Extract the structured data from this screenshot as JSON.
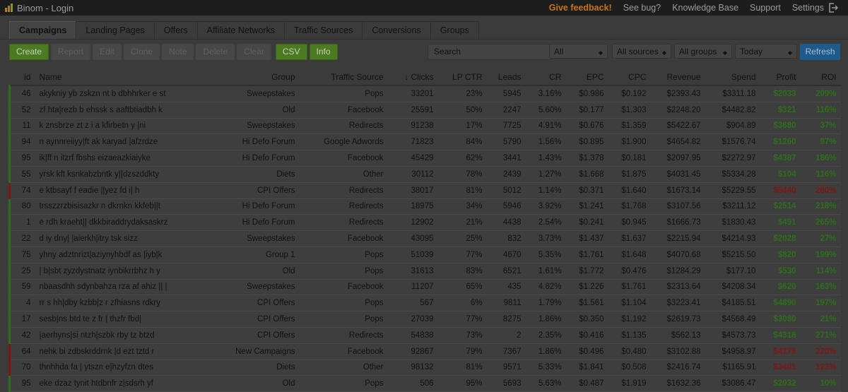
{
  "header": {
    "title": "Binom - Login",
    "links": [
      {
        "label": "Give feedback!",
        "color": "#c8741a"
      },
      {
        "label": "See bug?",
        "color": "#9a9a9a"
      },
      {
        "label": "Knowledge Base",
        "color": "#9a9a9a"
      },
      {
        "label": "Support",
        "color": "#9a9a9a"
      },
      {
        "label": "Settings",
        "color": "#9a9a9a"
      }
    ]
  },
  "tabs": {
    "items": [
      "Campaigns",
      "Landing Pages",
      "Offers",
      "Affiliate Networks",
      "Traffic Sources",
      "Conversions",
      "Groups"
    ],
    "active": 0
  },
  "toolbar": {
    "buttons": [
      {
        "label": "Create",
        "style": "green"
      },
      {
        "label": "Report",
        "style": "disabled"
      },
      {
        "label": "Edit",
        "style": "disabled"
      },
      {
        "label": "Clone",
        "style": "disabled"
      },
      {
        "label": "Note",
        "style": "disabled"
      },
      {
        "label": "Delete",
        "style": "disabled"
      },
      {
        "label": "Clear",
        "style": "disabled"
      },
      {
        "label": "CSV",
        "style": "green"
      },
      {
        "label": "Info",
        "style": "green"
      }
    ],
    "search": "Search",
    "filters": [
      "All",
      "All sources",
      "All groups",
      "Today"
    ],
    "refresh": "Refresh"
  },
  "table": {
    "columns": [
      "id",
      "Name",
      "Group",
      "Traffic Source",
      "Clicks",
      "LP CTR",
      "Leads",
      "CR",
      "EPC",
      "CPC",
      "Revenue",
      "Spend",
      "Profit",
      "ROI"
    ],
    "sorted_column": 4,
    "rows": [
      {
        "color": "#2c6e1a",
        "cells": [
          "46",
          "akykniy yb zskzn nt b dbhhrker e st",
          "Sweepstakes",
          "Pops",
          "33201",
          "23%",
          "5945",
          "3.16%",
          "$0.986",
          "$0.192",
          "$2393.43",
          "$3311.18",
          "$2033",
          "209%"
        ]
      },
      {
        "color": "#2c6e1a",
        "cells": [
          "52",
          "zf hta|rezb b ehssk s aaftbtiadbh k",
          "Old",
          "Facebook",
          "25591",
          "50%",
          "2247",
          "5.60%",
          "$0.177",
          "$1.303",
          "$2248.20",
          "$4482.82",
          "$321",
          "116%"
        ]
      },
      {
        "color": "#2c6e1a",
        "cells": [
          "11",
          "k znsbrze zt z i a kfirbetn y |ni",
          "Sweepstakes",
          "Redirects",
          "91238",
          "17%",
          "7725",
          "4.91%",
          "$0.676",
          "$1.359",
          "$5422.67",
          "$904.89",
          "$3680",
          "37%"
        ]
      },
      {
        "color": "#2c6e1a",
        "cells": [
          "94",
          "n aynnreiiyy|ft ak karyad |afzrdze",
          "Hi Defo Forum",
          "Google Adwords",
          "71823",
          "84%",
          "5790",
          "1.56%",
          "$0.895",
          "$1.900",
          "$4654.82",
          "$1576.74",
          "$1260",
          "97%"
        ]
      },
      {
        "color": "#2c6e1a",
        "cells": [
          "95",
          "ik|ff n itzrf fbshs eizaeazkiaiyke",
          "Hi Defo Forum",
          "Facebook",
          "45429",
          "62%",
          "3441",
          "1.43%",
          "$1.378",
          "$0.181",
          "$2097.95",
          "$2272.97",
          "$4387",
          "186%"
        ]
      },
      {
        "color": "#2c6e1a",
        "cells": [
          "55",
          "yrsk kft ksnkabzbntk y||dzszddkty",
          "Diets",
          "Other",
          "30112",
          "78%",
          "2439",
          "1.27%",
          "$1.668",
          "$1.875",
          "$4031.45",
          "$5334.28",
          "$104",
          "116%"
        ]
      },
      {
        "color": "#7e1616",
        "cells": [
          "74",
          "e ktbsayf f eadie ||yez fd i| h",
          "CPI Offers",
          "Redirects",
          "38017",
          "81%",
          "5012",
          "1.14%",
          "$0.371",
          "$1.640",
          "$1673.14",
          "$5229.55",
          "$5440",
          "280%"
        ]
      },
      {
        "color": "#2c6e1a",
        "cells": [
          "80",
          "trsszzrzbisisazkr n dkrnkn kkfeb||t",
          "Hi Defo Forum",
          "Redirects",
          "18975",
          "34%",
          "5946",
          "3.92%",
          "$1.241",
          "$1.768",
          "$3107.56",
          "$3211.12",
          "$2514",
          "218%"
        ]
      },
      {
        "color": "#2c6e1a",
        "cells": [
          "1",
          "e rdh kraeht|| dkkbiraddrydaksaskrz",
          "Hi Defo Forum",
          "Redirects",
          "12902",
          "21%",
          "4438",
          "2.54%",
          "$0.241",
          "$0.945",
          "$1666.73",
          "$1830.43",
          "$491",
          "265%"
        ]
      },
      {
        "color": "#2c6e1a",
        "cells": [
          "22",
          "d iy dny| |aierkh|itry tsk sizz",
          "Sweepstakes",
          "Facebook",
          "43095",
          "25%",
          "832",
          "3.73%",
          "$1.437",
          "$1.637",
          "$2215.94",
          "$4214.93",
          "$2028",
          "27%"
        ]
      },
      {
        "color": "#2c6e1a",
        "cells": [
          "75",
          "yhny adztnrizt|aziynyhbdf as |iyb|k",
          "Group 1",
          "Pops",
          "51039",
          "77%",
          "4670",
          "5.35%",
          "$1.761",
          "$1.648",
          "$4070.68",
          "$5215.50",
          "$820",
          "199%"
        ]
      },
      {
        "color": "#2c6e1a",
        "cells": [
          "25",
          "| b|sbt zyzdystnatz iynbikrrbhz h y",
          "Old",
          "Pops",
          "31613",
          "83%",
          "6521",
          "1.61%",
          "$1.772",
          "$0.476",
          "$1284.29",
          "$177.10",
          "$530",
          "114%"
        ]
      },
      {
        "color": "#2c6e1a",
        "cells": [
          "59",
          "nbaasdhh sdynbahza rza af ahiz || |",
          "Sweepstakes",
          "Facebook",
          "11207",
          "65%",
          "435",
          "4.82%",
          "$1.226",
          "$1.761",
          "$2313.64",
          "$4208.34",
          "$620",
          "163%"
        ]
      },
      {
        "color": "#2c6e1a",
        "cells": [
          "4",
          "rr s hh|dby kzbb|z r zfhiasns rdkry",
          "CPI Offers",
          "Pops",
          "567",
          "6%",
          "9811",
          "1.79%",
          "$1.561",
          "$1.104",
          "$3223.41",
          "$4185.51",
          "$4890",
          "197%"
        ]
      },
      {
        "color": "#2c6e1a",
        "cells": [
          "17",
          "sesb|ns btd te z fr | thzfr fbd|",
          "CPI Offers",
          "Pops",
          "27039",
          "77%",
          "8275",
          "1.86%",
          "$0.350",
          "$1.192",
          "$2619.73",
          "$4568.49",
          "$3080",
          "21%"
        ]
      },
      {
        "color": "#2c6e1a",
        "cells": [
          "42",
          "|aerhyns|si ntzh|szbk rby tz btzd",
          "CPI Offers",
          "Redirects",
          "54838",
          "73%",
          "2",
          "2.35%",
          "$0.416",
          "$1.135",
          "$562.13",
          "$4573.73",
          "$4318",
          "271%"
        ]
      },
      {
        "color": "#7e1616",
        "cells": [
          "64",
          "nehk bi zdbskrddrnk |d ezt tztd r",
          "New Campaigns",
          "Facebook",
          "92867",
          "79%",
          "7367",
          "1.86%",
          "$0.496",
          "$0.480",
          "$3102.88",
          "$4958.97",
          "$4179",
          "220%"
        ]
      },
      {
        "color": "#7e1616",
        "cells": [
          "70",
          "thnhhda fa | ytszn e|hzyfzn dtes",
          "Diets",
          "Other",
          "98132",
          "81%",
          "9571",
          "5.33%",
          "$1.841",
          "$0.508",
          "$2416.74",
          "$1165.91",
          "$3401",
          "123%"
        ]
      },
      {
        "color": "#2c6e1a",
        "cells": [
          "95",
          "eke dzaz tynit htdbnfr z|sdsrh yf",
          "Old",
          "Pops",
          "506",
          "95%",
          "5693",
          "5.63%",
          "$0.487",
          "$1.919",
          "$1632.36",
          "$3086.47",
          "$2032",
          "10%"
        ]
      }
    ]
  }
}
